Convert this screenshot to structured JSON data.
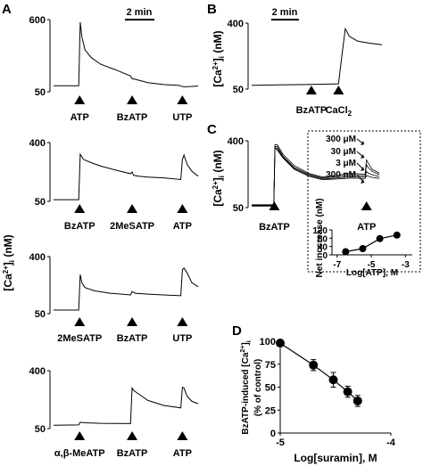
{
  "figure": {
    "scale_bar_label": "2 min",
    "ca_label_main": "[Ca",
    "ca_label_sup": "2+",
    "ca_label_sub": "i",
    "ca_label_units": " (nM)"
  },
  "chart_data": [
    {
      "id": "A1",
      "panel": "A",
      "type": "line",
      "ylim": [
        50,
        600
      ],
      "yticks": [
        "600",
        "50"
      ],
      "xlabel": "",
      "ylabel": "[Ca2+]i (nM)",
      "stimuli": [
        {
          "label": "ATP",
          "t": 0.83
        },
        {
          "label": "BzATP",
          "t": 2.5
        },
        {
          "label": "UTP",
          "t": 4.1
        }
      ],
      "series": [
        {
          "x": [
            0,
            0.8,
            0.85,
            0.9,
            1.0,
            1.2,
            1.5,
            2.0,
            2.45,
            2.5,
            2.6,
            3.0,
            3.5,
            4.0,
            4.05,
            4.15,
            4.35,
            4.6
          ],
          "y": [
            96,
            96,
            580,
            470,
            370,
            310,
            260,
            215,
            170,
            150,
            145,
            120,
            105,
            98,
            93,
            88,
            90,
            94
          ]
        }
      ]
    },
    {
      "id": "A2",
      "panel": "A",
      "type": "line",
      "ylim": [
        50,
        400
      ],
      "yticks": [
        "400",
        "50"
      ],
      "xlabel": "",
      "ylabel": "",
      "stimuli": [
        {
          "label": "BzATP",
          "t": 0.83
        },
        {
          "label": "2MeSATP",
          "t": 2.5
        },
        {
          "label": "ATP",
          "t": 4.1
        }
      ],
      "series": [
        {
          "x": [
            0,
            0.8,
            0.85,
            0.95,
            1.2,
            1.5,
            2.0,
            2.45,
            2.5,
            2.55,
            2.7,
            3.0,
            3.5,
            4.05,
            4.1,
            4.15,
            4.25,
            4.4,
            4.6
          ],
          "y": [
            60,
            60,
            330,
            300,
            280,
            260,
            235,
            215,
            225,
            205,
            200,
            195,
            190,
            180,
            300,
            325,
            270,
            230,
            200
          ]
        }
      ]
    },
    {
      "id": "A3",
      "panel": "A",
      "type": "line",
      "ylim": [
        50,
        400
      ],
      "yticks": [
        "400",
        "50"
      ],
      "xlabel": "",
      "ylabel": "",
      "stimuli": [
        {
          "label": "2MeSATP",
          "t": 0.83
        },
        {
          "label": "BzATP",
          "t": 2.5
        },
        {
          "label": "UTP",
          "t": 4.1
        }
      ],
      "series": [
        {
          "x": [
            0,
            0.8,
            0.85,
            0.9,
            1.0,
            1.3,
            1.8,
            2.45,
            2.5,
            2.6,
            3.0,
            3.5,
            4.05,
            4.1,
            4.15,
            4.25,
            4.4,
            4.6
          ],
          "y": [
            72,
            72,
            290,
            240,
            210,
            190,
            175,
            165,
            185,
            175,
            170,
            165,
            160,
            320,
            330,
            300,
            240,
            215
          ]
        }
      ]
    },
    {
      "id": "A4",
      "panel": "A",
      "type": "line",
      "ylim": [
        50,
        400
      ],
      "yticks": [
        "400",
        "50"
      ],
      "xlabel": "",
      "ylabel": "",
      "stimuli": [
        {
          "label": "α,β-MeATP",
          "t": 0.83
        },
        {
          "label": "BzATP",
          "t": 2.5
        },
        {
          "label": "ATP",
          "t": 4.1
        }
      ],
      "series": [
        {
          "x": [
            0,
            0.8,
            0.85,
            1.0,
            1.5,
            2.45,
            2.5,
            2.55,
            2.7,
            3.0,
            3.5,
            4.05,
            4.1,
            4.15,
            4.25,
            4.4,
            4.6
          ],
          "y": [
            70,
            72,
            88,
            85,
            82,
            80,
            295,
            280,
            260,
            220,
            190,
            175,
            300,
            295,
            245,
            215,
            200
          ]
        }
      ]
    },
    {
      "id": "B",
      "panel": "B",
      "type": "line",
      "ylim": [
        50,
        400
      ],
      "yticks": [
        "400",
        "50"
      ],
      "xlabel": "",
      "ylabel": "[Ca2+]i (nM)",
      "stimuli": [
        {
          "label": "BzATP",
          "t": 2.2
        },
        {
          "label": "CaCl2",
          "t": 3.2
        }
      ],
      "series": [
        {
          "x": [
            0,
            1.0,
            2.0,
            2.2,
            2.6,
            3.2,
            3.3,
            3.45,
            3.6,
            3.9,
            4.3,
            4.8
          ],
          "y": [
            70,
            72,
            74,
            75,
            76,
            78,
            200,
            370,
            330,
            305,
            295,
            285
          ]
        }
      ]
    },
    {
      "id": "C_trace",
      "panel": "C",
      "type": "line",
      "ylim": [
        50,
        400
      ],
      "yticks": [
        "400",
        "50"
      ],
      "xlabel": "",
      "ylabel": "[Ca2+]i (nM)",
      "stimuli": [
        {
          "label": "BzATP",
          "t": 0.8
        },
        {
          "label": "ATP",
          "t": 4.05
        }
      ],
      "concentrations": [
        "300 μM",
        "30 μM",
        "3 μM",
        "300 nM"
      ],
      "series": [
        {
          "x": [
            0,
            0.78,
            0.82,
            0.9,
            1.1,
            1.5,
            2.0,
            2.5,
            3.0,
            3.5,
            4.0,
            4.05,
            4.1,
            4.25,
            4.5
          ],
          "y": [
            65,
            65,
            380,
            380,
            330,
            270,
            230,
            210,
            220,
            230,
            225,
            300,
            285,
            250,
            230
          ]
        },
        {
          "x": [
            0,
            0.78,
            0.82,
            0.9,
            1.1,
            1.5,
            2.0,
            2.5,
            3.0,
            3.5,
            4.0,
            4.05,
            4.1,
            4.25,
            4.5
          ],
          "y": [
            62,
            62,
            370,
            370,
            320,
            260,
            225,
            205,
            212,
            222,
            218,
            275,
            262,
            240,
            222
          ]
        },
        {
          "x": [
            0,
            0.78,
            0.82,
            0.9,
            1.1,
            1.5,
            2.0,
            2.5,
            3.0,
            3.5,
            4.0,
            4.05,
            4.1,
            4.25,
            4.5
          ],
          "y": [
            60,
            60,
            365,
            360,
            315,
            255,
            220,
            200,
            205,
            212,
            210,
            240,
            232,
            222,
            212
          ]
        },
        {
          "x": [
            0,
            0.78,
            0.82,
            0.9,
            1.1,
            1.5,
            2.0,
            2.5,
            3.0,
            3.5,
            4.0,
            4.05,
            4.1,
            4.25,
            4.5
          ],
          "y": [
            58,
            58,
            360,
            352,
            310,
            250,
            215,
            196,
            200,
            205,
            202,
            218,
            215,
            208,
            203
          ]
        }
      ]
    },
    {
      "id": "C_inset",
      "panel": "C",
      "type": "scatter",
      "xlabel": "Log[ATP], M",
      "ylabel": "Net inccrease (nM)",
      "xlim": [
        -7.3,
        -2.6
      ],
      "ylim": [
        0,
        120
      ],
      "xticks": [
        "-7",
        "-5",
        "-3"
      ],
      "yticks": [
        "0",
        "40",
        "80",
        "120"
      ],
      "x": [
        -6.5,
        -5.5,
        -4.5,
        -3.5
      ],
      "y": [
        15,
        30,
        78,
        95
      ],
      "yerr": [
        2,
        4,
        8,
        6
      ]
    },
    {
      "id": "D",
      "panel": "D",
      "type": "scatter",
      "xlabel": "Log[suramin], M",
      "ylabel": "BzATP-induced [Ca2+]i (% of control)",
      "xlim": [
        -5,
        -4
      ],
      "ylim": [
        0,
        100
      ],
      "xticks": [
        "-5",
        "-4"
      ],
      "yticks": [
        "0",
        "25",
        "50",
        "75",
        "100"
      ],
      "x": [
        -5.0,
        -4.7,
        -4.52,
        -4.39,
        -4.3
      ],
      "y": [
        98,
        74,
        58,
        45,
        35
      ],
      "yerr": [
        3,
        6,
        8,
        6,
        6
      ]
    }
  ]
}
